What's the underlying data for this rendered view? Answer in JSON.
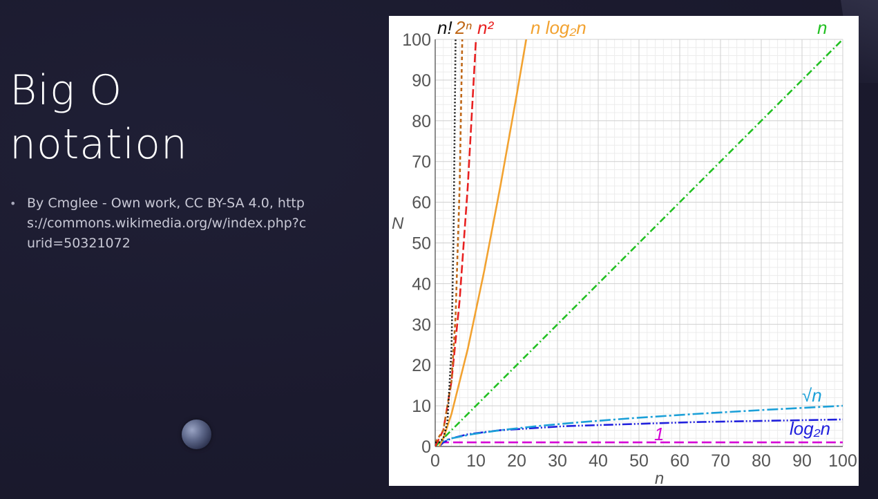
{
  "slide": {
    "title_line1": "Big O",
    "title_line2": "notation",
    "bullet_text": "By Cmglee - Own work, CC BY-SA 4.0, https://commons.wikimedia.org/w/index.php?curid=50321072"
  },
  "chart_data": {
    "type": "line",
    "title": "",
    "xlabel": "n",
    "ylabel": "N",
    "xlim": [
      0,
      100
    ],
    "ylim": [
      0,
      100
    ],
    "grid": true,
    "x_ticks": [
      "0",
      "10",
      "20",
      "30",
      "40",
      "50",
      "60",
      "70",
      "80",
      "90",
      "100"
    ],
    "y_ticks": [
      "0",
      "10",
      "20",
      "30",
      "40",
      "50",
      "60",
      "70",
      "80",
      "90",
      "100"
    ],
    "series": [
      {
        "name": "1",
        "color": "#d500d5",
        "dash": "14,6",
        "values": [
          [
            1,
            1
          ],
          [
            100,
            1
          ]
        ]
      },
      {
        "name": "log₂n",
        "color": "#2020dd",
        "dash": "14,3,2,3,2,3",
        "values": [
          [
            1,
            0
          ],
          [
            2,
            1
          ],
          [
            4,
            2
          ],
          [
            8,
            3
          ],
          [
            16,
            4
          ],
          [
            32,
            5
          ],
          [
            64,
            6
          ],
          [
            100,
            6.64
          ]
        ]
      },
      {
        "name": "√n",
        "color": "#1ca0d8",
        "dash": "16,4,3,4",
        "values": [
          [
            0,
            0
          ],
          [
            1,
            1
          ],
          [
            4,
            2
          ],
          [
            9,
            3
          ],
          [
            16,
            4
          ],
          [
            25,
            5
          ],
          [
            36,
            6
          ],
          [
            49,
            7
          ],
          [
            64,
            8
          ],
          [
            81,
            9
          ],
          [
            100,
            10
          ]
        ]
      },
      {
        "name": "n",
        "color": "#22c022",
        "dash": "10,4,2,4",
        "values": [
          [
            0,
            0
          ],
          [
            100,
            100
          ]
        ]
      },
      {
        "name": "n log₂n",
        "color": "#f2a230",
        "dash": "",
        "values": [
          [
            1,
            0
          ],
          [
            2,
            2
          ],
          [
            4,
            8
          ],
          [
            8,
            24
          ],
          [
            12,
            43
          ],
          [
            16,
            64
          ],
          [
            20,
            86.4
          ],
          [
            22.5,
            101
          ]
        ]
      },
      {
        "name": "n²",
        "color": "#e82020",
        "dash": "12,5",
        "values": [
          [
            0,
            0
          ],
          [
            2,
            4
          ],
          [
            4,
            16
          ],
          [
            6,
            36
          ],
          [
            8,
            64
          ],
          [
            10,
            100
          ]
        ]
      },
      {
        "name": "2ⁿ",
        "color": "#c06818",
        "dash": "5,4",
        "values": [
          [
            0,
            1
          ],
          [
            2,
            4
          ],
          [
            4,
            16
          ],
          [
            5,
            32
          ],
          [
            6,
            64
          ],
          [
            6.64,
            100
          ]
        ]
      },
      {
        "name": "n!",
        "color": "#111111",
        "dash": "2,3",
        "values": [
          [
            0,
            1
          ],
          [
            1,
            1
          ],
          [
            2,
            2
          ],
          [
            3,
            6
          ],
          [
            4,
            24
          ],
          [
            4.5,
            52
          ],
          [
            5,
            100
          ]
        ]
      }
    ],
    "labels": {
      "n_fact": "n!",
      "two_n": "2ⁿ",
      "n_sq": "n²",
      "nlogn": "n log₂n",
      "n": "n",
      "sqrt_n": "√n",
      "log2n": "log₂n",
      "one": "1"
    }
  }
}
